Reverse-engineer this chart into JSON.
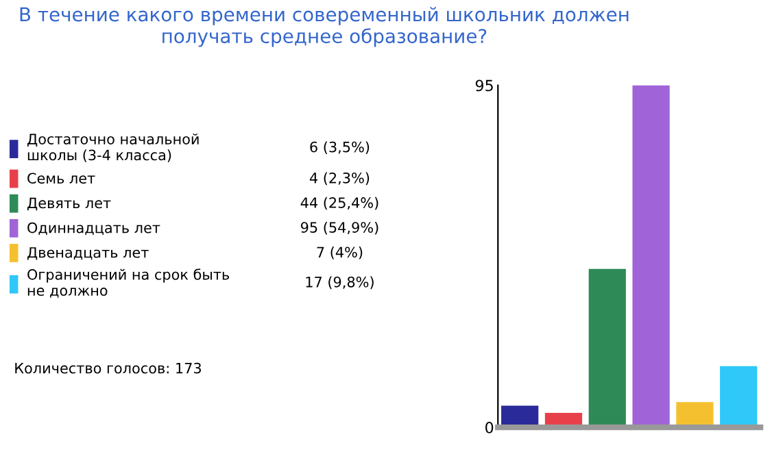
{
  "chart_data": {
    "type": "bar",
    "title": "В течение какого времени совеременный школьник должен\nполучать среднее образование?",
    "categories": [
      null,
      null,
      null,
      null,
      null,
      null
    ],
    "series": [
      {
        "name": "Достаточно начальной\nшколы (3-4 класса)",
        "color": "#2a2a9a",
        "values": [
          6,
          null,
          null,
          null,
          null,
          null
        ]
      },
      {
        "name": "Семь лет",
        "color": "#e8404a",
        "values": [
          null,
          4,
          null,
          null,
          null,
          null
        ]
      },
      {
        "name": "Девять лет",
        "color": "#2e8b57",
        "values": [
          null,
          null,
          44,
          null,
          null,
          null
        ]
      },
      {
        "name": "Одиннадцать лет",
        "color": "#a064d8",
        "values": [
          null,
          null,
          null,
          95,
          null,
          null
        ]
      },
      {
        "name": "Двенадцать лет",
        "color": "#f5c030",
        "values": [
          null,
          null,
          null,
          null,
          7,
          null
        ]
      },
      {
        "name": "Ограничений на срок быть\nне должно",
        "color": "#30c8f8",
        "values": [
          null,
          null,
          null,
          null,
          null,
          17
        ]
      }
    ],
    "ylim": [
      0,
      95
    ],
    "yticks": [
      0,
      95
    ],
    "grid": false,
    "legend": "left",
    "annotations": [
      "6 (3,5%)",
      "4 (2,3%)",
      "44 (25,4%)",
      "95 (54,9%)",
      "7 (4%)",
      "17 (9,8%)",
      "Количество голосов: 173"
    ]
  }
}
